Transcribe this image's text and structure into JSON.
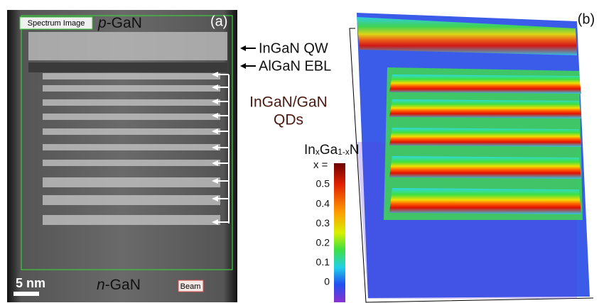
{
  "panel_a": {
    "spectrum_label": "Spectrum Image",
    "top_layer": {
      "italic": "p",
      "rest": "-GaN"
    },
    "panel_label": "(a)",
    "annotations": {
      "qw": "InGaN QW",
      "ebl": "AlGaN EBL",
      "qds_line1": "InGaN/GaN",
      "qds_line2": "QDs"
    },
    "scale_bar": "5 nm",
    "bottom_layer": {
      "italic": "n",
      "rest": "-GaN"
    },
    "beam_label": "Beam"
  },
  "panel_b": {
    "panel_label": "(b)",
    "colorbar": {
      "title": {
        "a": "In",
        "sub1": "x",
        "b": "Ga",
        "sub2": "1-x",
        "c": "N"
      },
      "x_label": "x =",
      "ticks": [
        "0.5",
        "0.4",
        "0.3",
        "0.2",
        "0.1",
        "0"
      ]
    }
  }
}
